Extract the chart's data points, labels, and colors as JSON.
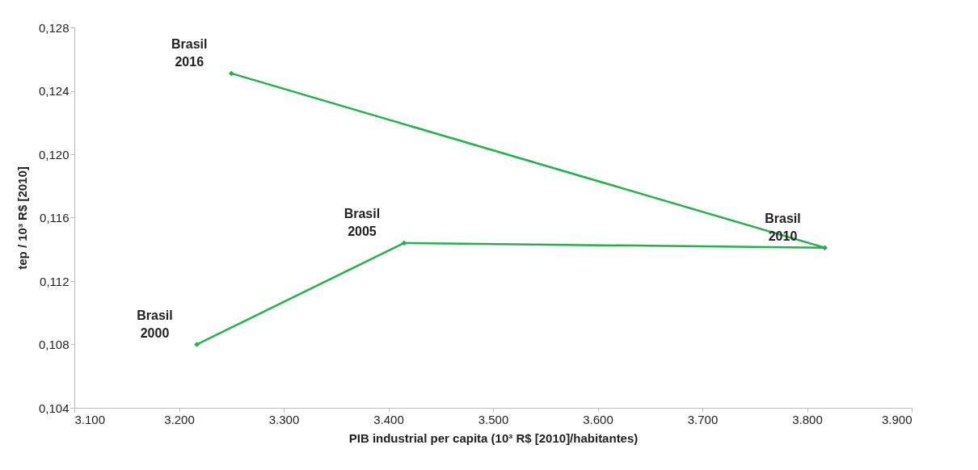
{
  "chart_data": {
    "type": "line",
    "xlabel": "PIB industrial per capita (10³ R$ [2010]/habitantes)",
    "ylabel": "tep / 10³ R$ [2010]",
    "series": [
      {
        "color": "#22b14c",
        "x": [
          3217,
          3415,
          3817,
          3250
        ],
        "values": [
          0.108,
          0.1144,
          0.1141,
          0.1251
        ]
      }
    ],
    "xlim": [
      3100,
      3900
    ],
    "xticks": [
      {
        "value": 3100,
        "label": "3.100"
      },
      {
        "value": 3200,
        "label": "3.200"
      },
      {
        "value": 3300,
        "label": "3.300"
      },
      {
        "value": 3400,
        "label": "3.400"
      },
      {
        "value": 3500,
        "label": "3.500"
      },
      {
        "value": 3600,
        "label": "3.600"
      },
      {
        "value": 3700,
        "label": "3.700"
      },
      {
        "value": 3800,
        "label": "3.800"
      },
      {
        "value": 3900,
        "label": "3.900"
      }
    ],
    "ylim": [
      0.104,
      0.128
    ],
    "yticks": [
      {
        "value": 0.104,
        "label": "0,104"
      },
      {
        "value": 0.108,
        "label": "0,108"
      },
      {
        "value": 0.112,
        "label": "0,112"
      },
      {
        "value": 0.116,
        "label": "0,116"
      },
      {
        "value": 0.12,
        "label": "0,120"
      },
      {
        "value": 0.124,
        "label": "0,124"
      },
      {
        "value": 0.128,
        "label": "0,128"
      }
    ],
    "annotations": [
      {
        "text": "Brasil\n2000",
        "x": 3217,
        "y": 0.108
      },
      {
        "text": "Brasil\n2005",
        "x": 3415,
        "y": 0.1144
      },
      {
        "text": "Brasil\n2010",
        "x": 3817,
        "y": 0.1141
      },
      {
        "text": "Brasil\n2016",
        "x": 3250,
        "y": 0.1251
      }
    ],
    "marker": "diamond",
    "line_style": "solid",
    "grid": false
  }
}
